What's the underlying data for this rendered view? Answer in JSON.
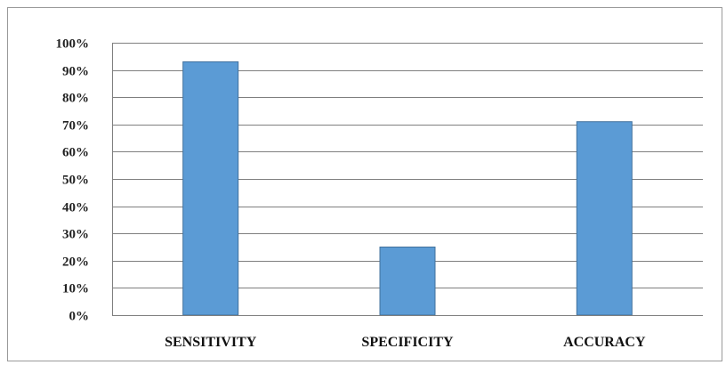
{
  "chart_data": {
    "type": "bar",
    "title": "",
    "xlabel": "",
    "ylabel": "",
    "categories": [
      "SENSITIVITY",
      "SPECIFICITY",
      "ACCURACY"
    ],
    "values": [
      93,
      25,
      71
    ],
    "ylim": [
      0,
      100
    ],
    "yticks": [
      "0%",
      "10%",
      "20%",
      "30%",
      "40%",
      "50%",
      "60%",
      "70%",
      "80%",
      "90%",
      "100%"
    ],
    "grid": true,
    "legend": "none",
    "bar_color": "#5b9bd5",
    "bar_border_color": "#41719c"
  }
}
